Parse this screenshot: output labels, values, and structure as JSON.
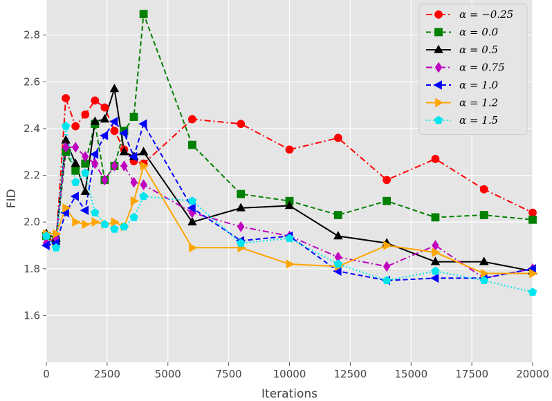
{
  "chart_data": {
    "type": "line",
    "xlabel": "Iterations",
    "ylabel": "FID",
    "xlim": [
      0,
      20000
    ],
    "ylim": [
      1.4,
      2.95
    ],
    "x_ticks": [
      0,
      2500,
      5000,
      7500,
      10000,
      12500,
      15000,
      17500,
      20000
    ],
    "y_ticks": [
      1.6,
      1.8,
      2.0,
      2.2,
      2.4,
      2.6,
      2.8
    ],
    "x_tick_labels": [
      "0",
      "2500",
      "5000",
      "7500",
      "10000",
      "12500",
      "15000",
      "17500",
      "20000"
    ],
    "y_tick_labels": [
      "1.6",
      "1.8",
      "2.0",
      "2.2",
      "2.4",
      "2.6",
      "2.8"
    ],
    "grid": true,
    "legend_position": "top-right",
    "x": [
      0,
      400,
      800,
      1200,
      1600,
      2000,
      2400,
      2800,
      3200,
      3600,
      4000,
      6000,
      8000,
      10000,
      12000,
      14000,
      16000,
      18000,
      20000
    ],
    "series": [
      {
        "name": "α = −0.25",
        "color": "#ff0000",
        "marker": "circle",
        "dash": "dashdot",
        "values": [
          1.94,
          1.91,
          2.53,
          2.41,
          2.46,
          2.52,
          2.49,
          2.39,
          2.31,
          2.26,
          2.25,
          2.44,
          2.42,
          2.31,
          2.36,
          2.18,
          2.27,
          2.14,
          2.04
        ]
      },
      {
        "name": "α = 0.0",
        "color": "#008000",
        "marker": "square",
        "dash": "dashed",
        "values": [
          1.94,
          1.92,
          2.3,
          2.22,
          2.25,
          2.42,
          2.18,
          2.24,
          2.39,
          2.45,
          2.89,
          2.33,
          2.12,
          2.09,
          2.03,
          2.09,
          2.02,
          2.03,
          2.01
        ]
      },
      {
        "name": "α = 0.5",
        "color": "#000000",
        "marker": "triangle-up",
        "dash": "solid",
        "values": [
          1.95,
          1.93,
          2.35,
          2.25,
          2.13,
          2.43,
          2.44,
          2.57,
          2.3,
          2.28,
          2.3,
          2.0,
          2.06,
          2.07,
          1.94,
          1.91,
          1.83,
          1.83,
          1.79
        ]
      },
      {
        "name": "α = 0.75",
        "color": "#bf00bf",
        "marker": "diamond",
        "dash": "dashdot",
        "values": [
          1.91,
          1.93,
          2.32,
          2.32,
          2.28,
          2.25,
          2.18,
          2.24,
          2.24,
          2.17,
          2.16,
          2.04,
          1.98,
          1.94,
          1.85,
          1.81,
          1.9,
          1.76,
          1.8
        ]
      },
      {
        "name": "α = 1.0",
        "color": "#0000ff",
        "marker": "triangle-left",
        "dash": "dashed",
        "values": [
          1.9,
          1.91,
          2.04,
          2.11,
          2.05,
          2.29,
          2.37,
          2.43,
          2.38,
          2.28,
          2.42,
          2.06,
          1.92,
          1.94,
          1.79,
          1.75,
          1.76,
          1.76,
          1.8
        ]
      },
      {
        "name": "α = 1.2",
        "color": "#ffa500",
        "marker": "triangle-right",
        "dash": "solid",
        "values": [
          1.95,
          1.95,
          2.06,
          2.0,
          1.99,
          2.0,
          1.99,
          2.0,
          1.98,
          2.09,
          2.24,
          1.89,
          1.89,
          1.82,
          1.81,
          1.9,
          1.87,
          1.78,
          1.78
        ]
      },
      {
        "name": "α = 1.5",
        "color": "#00e5ee",
        "marker": "pentagon",
        "dash": "dotted",
        "values": [
          1.94,
          1.89,
          2.41,
          2.17,
          2.21,
          2.04,
          1.99,
          1.97,
          1.98,
          2.02,
          2.11,
          2.09,
          1.91,
          1.93,
          1.82,
          1.75,
          1.79,
          1.75,
          1.7
        ]
      }
    ]
  }
}
